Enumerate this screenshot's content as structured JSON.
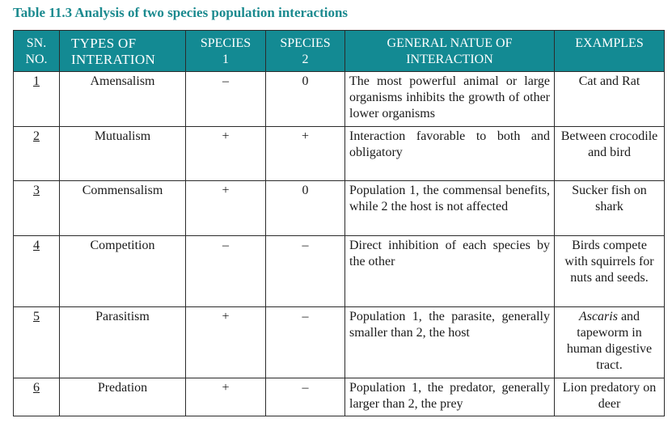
{
  "caption": "Table 11.3 Analysis of two species population interactions",
  "headers": {
    "sn": [
      "SN.",
      "NO."
    ],
    "types": [
      "TYPES OF",
      "INTERATION"
    ],
    "species1": [
      "SPECIES",
      "1"
    ],
    "species2": [
      "SPECIES",
      "2"
    ],
    "general": [
      "GENERAL NATUE OF",
      "INTERACTION"
    ],
    "examples": "EXAMPLES"
  },
  "rows": [
    {
      "sn": "1",
      "type": "Amensalism",
      "species1": "–",
      "species2": "0",
      "general": "The most powerful animal or large organisms inhibits the growth of other lower organisms",
      "example": "Cat and Rat"
    },
    {
      "sn": "2",
      "type": "Mutualism",
      "species1": "+",
      "species2": "+",
      "general": "Interaction favorable to both and obligatory",
      "example": "Between crocodile and bird"
    },
    {
      "sn": "3",
      "type": "Commensalism",
      "species1": "+",
      "species2": "0",
      "general": "Population 1, the commensal benefits, while 2 the host is not affected",
      "example": "Sucker fish on shark"
    },
    {
      "sn": "4",
      "type": "Competition",
      "species1": "–",
      "species2": "–",
      "general": "Direct inhibition of each species by the other",
      "example": "Birds compete with squirrels for nuts and seeds."
    },
    {
      "sn": "5",
      "type": "Parasitism",
      "species1": "+",
      "species2": "–",
      "general": "Population 1, the parasite, generally smaller than 2, the host",
      "example_italic": "Ascaris",
      "example": " and tapeworm in human digestive tract."
    },
    {
      "sn": "6",
      "type": "Predation",
      "species1": "+",
      "species2": "–",
      "general": "Population 1, the predator, generally larger than 2, the prey",
      "example": "Lion predatory on deer"
    }
  ]
}
